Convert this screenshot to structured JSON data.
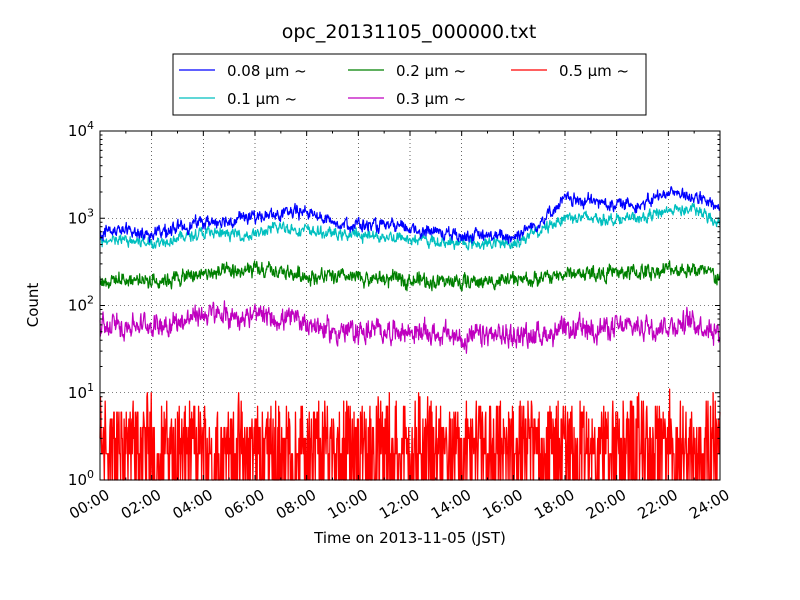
{
  "chart_data": {
    "type": "line",
    "title": "opc_20131105_000000.txt",
    "xlabel": "Time on 2013-11-05 (JST)",
    "ylabel": "Count",
    "yscale": "log",
    "ylim": [
      1,
      10000
    ],
    "xlim": [
      "00:00",
      "24:00"
    ],
    "grid": true,
    "legend_position": "top",
    "x_ticks": [
      "00:00",
      "02:00",
      "04:00",
      "06:00",
      "08:00",
      "10:00",
      "12:00",
      "14:00",
      "16:00",
      "18:00",
      "20:00",
      "22:00",
      "24:00"
    ],
    "y_ticks": [
      {
        "value": 1,
        "base": "10",
        "exp": "0"
      },
      {
        "value": 10,
        "base": "10",
        "exp": "1"
      },
      {
        "value": 100,
        "base": "10",
        "exp": "2"
      },
      {
        "value": 1000,
        "base": "10",
        "exp": "3"
      },
      {
        "value": 10000,
        "base": "10",
        "exp": "4"
      }
    ],
    "x_hours": [
      0,
      1,
      2,
      3,
      4,
      5,
      6,
      7,
      8,
      9,
      10,
      11,
      12,
      13,
      14,
      15,
      16,
      17,
      18,
      19,
      20,
      21,
      22,
      23,
      24
    ],
    "series": [
      {
        "name": "0.08 μm ~",
        "color": "#0000ff",
        "values": [
          700,
          720,
          650,
          780,
          900,
          950,
          1050,
          1100,
          1200,
          900,
          850,
          800,
          760,
          700,
          640,
          620,
          620,
          900,
          1650,
          1550,
          1450,
          1450,
          2000,
          1800,
          1250
        ]
      },
      {
        "name": "0.1 μm ~",
        "color": "#00bfbf",
        "values": [
          540,
          560,
          520,
          600,
          680,
          650,
          650,
          800,
          720,
          660,
          640,
          620,
          580,
          540,
          520,
          510,
          520,
          700,
          1050,
          1000,
          980,
          1000,
          1250,
          1250,
          880
        ]
      },
      {
        "name": "0.2 μm ~",
        "color": "#008000",
        "values": [
          190,
          200,
          195,
          205,
          230,
          240,
          250,
          240,
          220,
          210,
          205,
          200,
          200,
          190,
          185,
          190,
          195,
          200,
          230,
          235,
          235,
          240,
          260,
          260,
          210
        ]
      },
      {
        "name": "0.3 μm ~",
        "color": "#bf00bf",
        "values": [
          55,
          60,
          60,
          65,
          80,
          75,
          75,
          70,
          65,
          50,
          50,
          52,
          50,
          48,
          42,
          45,
          45,
          47,
          50,
          55,
          55,
          58,
          60,
          65,
          50
        ]
      },
      {
        "name": "0.5 μm ~",
        "color": "#ff0000",
        "values": [
          3,
          3,
          3,
          3.5,
          3.5,
          4,
          4,
          3.5,
          3,
          3,
          3,
          3,
          3,
          3,
          3,
          3,
          3,
          3,
          3.5,
          3.5,
          3.5,
          3.5,
          3.5,
          3.5,
          3
        ]
      }
    ]
  }
}
